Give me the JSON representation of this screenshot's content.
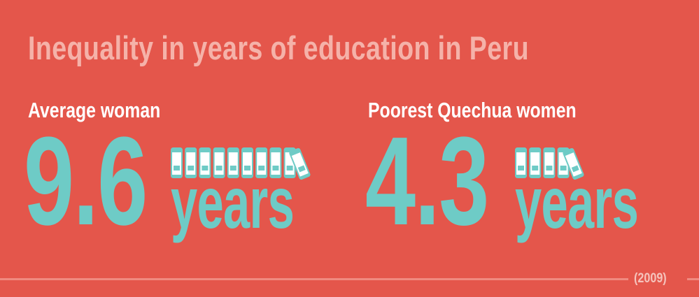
{
  "title": "Inequality in years of education in Peru",
  "footnote": "(2009)",
  "colors": {
    "background": "#E4564B",
    "title": "#F5B2A9",
    "label": "#FFFFFF",
    "accent": "#6ECBC6",
    "book_body": "#FFFFFF",
    "book_outline": "#6ECBC6",
    "book_band": "#6ECBC6",
    "rule": "#F08A80"
  },
  "chart_data": {
    "type": "bar",
    "title": "Inequality in years of education in Peru",
    "categories": [
      "Average woman",
      "Poorest Quechua women"
    ],
    "values": [
      9.6,
      4.3
    ],
    "unit": "years",
    "note": "(2009)"
  },
  "stats": [
    {
      "label": "Average woman",
      "value_text": "9.6",
      "unit": "years",
      "value": 9.6
    },
    {
      "label": "Poorest Quechua women",
      "value_text": "4.3",
      "unit": "years",
      "value": 4.3
    }
  ]
}
